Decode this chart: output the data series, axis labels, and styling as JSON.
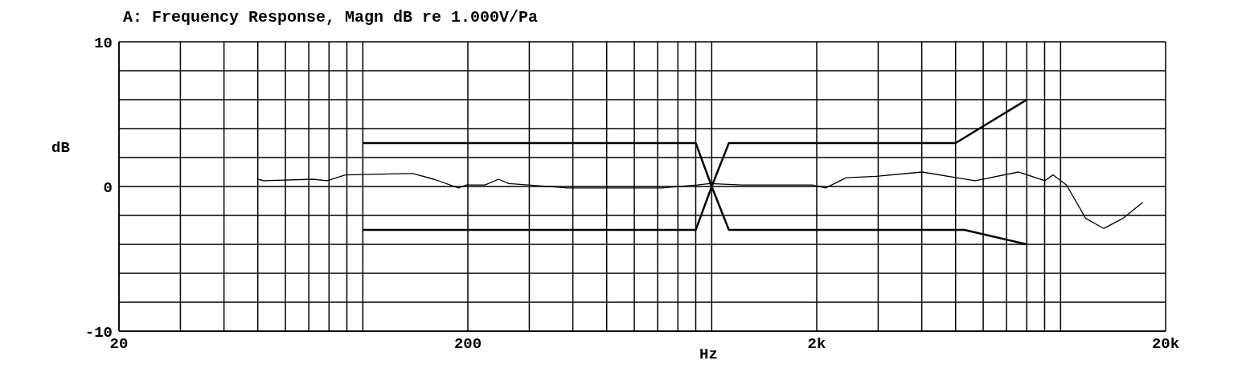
{
  "chart_data": {
    "type": "line",
    "title": "A: Frequency Response, Magn dB re 1.000V/Pa",
    "xlabel": "Hz",
    "ylabel": "dB",
    "log": "x",
    "grid": true,
    "legend": false,
    "marker": "none",
    "line_style": "solid",
    "xlim": [
      20,
      20000
    ],
    "xticks": [
      20,
      {
        "value": 30,
        "label": null
      },
      {
        "value": 40,
        "label": null
      },
      {
        "value": 50,
        "label": null
      },
      {
        "value": 60,
        "label": null
      },
      {
        "value": 70,
        "label": null
      },
      {
        "value": 80,
        "label": null
      },
      {
        "value": 90,
        "label": null
      },
      {
        "value": 100,
        "label": null
      },
      200,
      {
        "value": 300,
        "label": null
      },
      {
        "value": 400,
        "label": null
      },
      {
        "value": 500,
        "label": null
      },
      {
        "value": 600,
        "label": null
      },
      {
        "value": 700,
        "label": null
      },
      {
        "value": 800,
        "label": null
      },
      {
        "value": 900,
        "label": null
      },
      {
        "value": 1000,
        "label": null
      },
      {
        "value": 2000,
        "label": "2k"
      },
      {
        "value": 3000,
        "label": null
      },
      {
        "value": 4000,
        "label": null
      },
      {
        "value": 5000,
        "label": null
      },
      {
        "value": 6000,
        "label": null
      },
      {
        "value": 7000,
        "label": null
      },
      {
        "value": 8000,
        "label": null
      },
      {
        "value": 9000,
        "label": null
      },
      {
        "value": 10000,
        "label": null
      },
      {
        "value": 20000,
        "label": "20k"
      }
    ],
    "ylim": [
      -10,
      10
    ],
    "yticks": [
      -10,
      {
        "value": -8,
        "label": null
      },
      {
        "value": -6,
        "label": null
      },
      {
        "value": -4,
        "label": null
      },
      {
        "value": -2,
        "label": null
      },
      0,
      {
        "value": 2,
        "label": null
      },
      {
        "value": 4,
        "label": null
      },
      {
        "value": 6,
        "label": null
      },
      {
        "value": 8,
        "label": null
      },
      10
    ],
    "series": [
      {
        "color": "#000000",
        "x": [
          50,
          52,
          72,
          79,
          89,
          139,
          160,
          188,
          198,
          224,
          245,
          262,
          298,
          388,
          480,
          718,
          908,
          988,
          1220,
          1940,
          2120,
          2430,
          2960,
          4010,
          5040,
          5690,
          7570,
          9020,
          9510,
          10400,
          11800,
          13300,
          15100,
          17200
        ],
        "values": [
          0.5,
          0.4,
          0.5,
          0.4,
          0.8,
          0.9,
          0.5,
          -0.1,
          0.1,
          0.1,
          0.5,
          0.2,
          0.1,
          -0.1,
          -0.1,
          -0.1,
          0.1,
          0.2,
          0.1,
          0.1,
          -0.1,
          0.6,
          0.7,
          1.0,
          0.6,
          0.4,
          1.0,
          0.4,
          0.8,
          0.1,
          -2.2,
          -2.9,
          -2.2,
          -1.1
        ]
      },
      {
        "color": "#000000",
        "x": [
          100,
          900,
          1000,
          1120,
          5000,
          8000
        ],
        "values": [
          3,
          3,
          0,
          3,
          3,
          6
        ]
      },
      {
        "color": "#000000",
        "x": [
          100,
          900,
          1000,
          1120,
          5300,
          8000
        ],
        "values": [
          -3,
          -3,
          0,
          -3,
          -3,
          -4
        ]
      }
    ]
  }
}
